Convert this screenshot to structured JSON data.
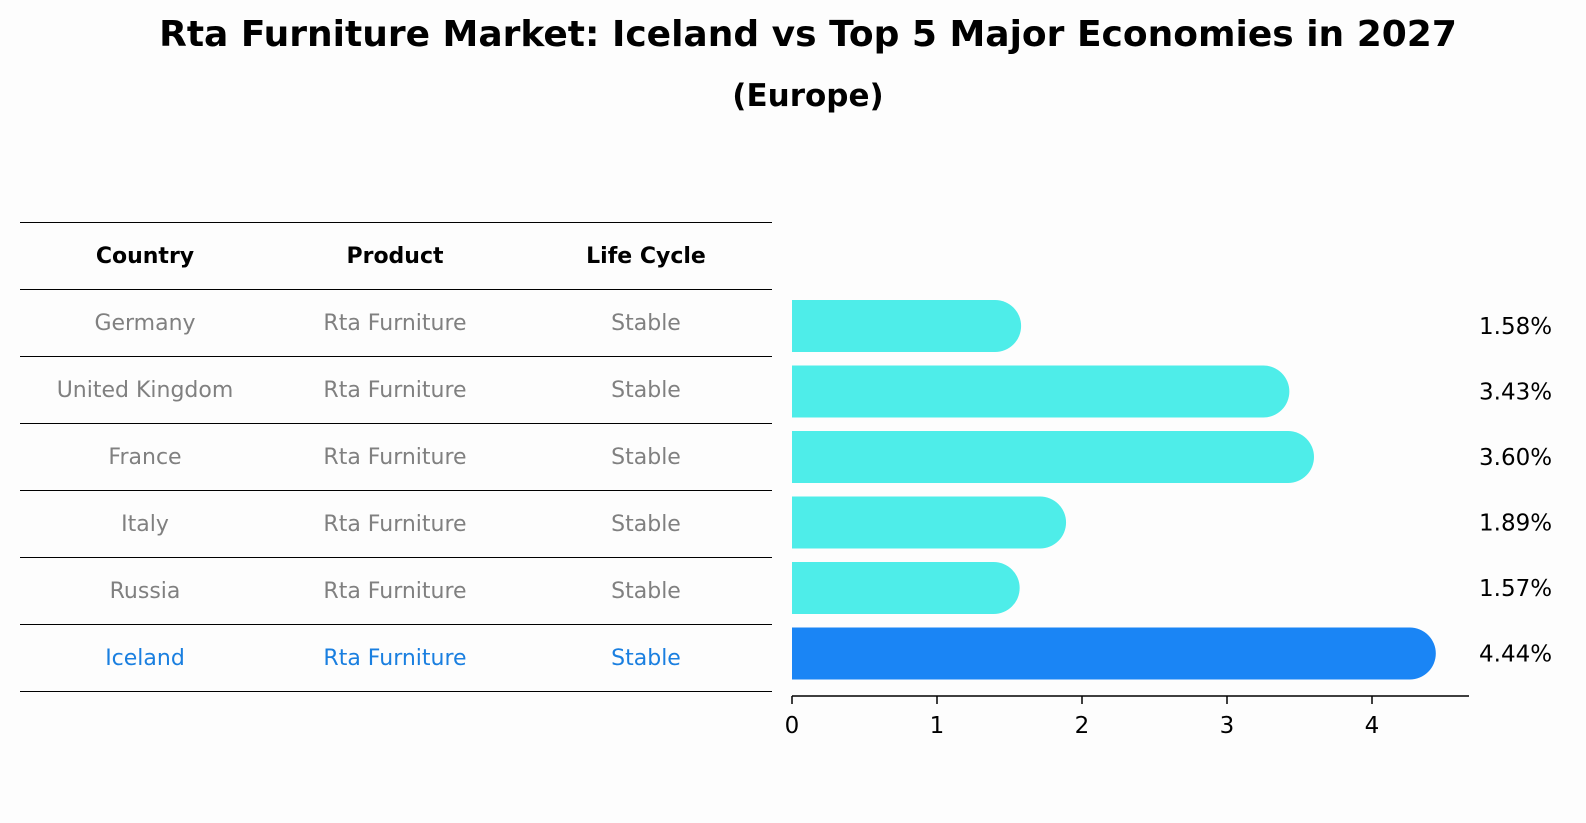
{
  "title": "Rta Furniture Market: Iceland vs Top 5 Major Economies in 2027",
  "subtitle": "(Europe)",
  "table": {
    "headers": [
      "Country",
      "Product",
      "Life Cycle"
    ],
    "rows": [
      [
        "Germany",
        "Rta Furniture",
        "Stable"
      ],
      [
        "United Kingdom",
        "Rta Furniture",
        "Stable"
      ],
      [
        "France",
        "Rta Furniture",
        "Stable"
      ],
      [
        "Italy",
        "Rta Furniture",
        "Stable"
      ],
      [
        "Russia",
        "Rta Furniture",
        "Stable"
      ],
      [
        "Iceland",
        "Rta Furniture",
        "Stable"
      ]
    ],
    "highlight_row": 5
  },
  "chart_data": {
    "type": "bar",
    "orientation": "horizontal",
    "categories": [
      "Germany",
      "United Kingdom",
      "France",
      "Italy",
      "Russia",
      "Iceland"
    ],
    "values": [
      1.58,
      3.43,
      3.6,
      1.89,
      1.57,
      4.44
    ],
    "value_labels": [
      "1.58%",
      "3.43%",
      "3.60%",
      "1.89%",
      "1.57%",
      "4.44%"
    ],
    "xticks": [
      "0",
      "1",
      "2",
      "3",
      "4"
    ],
    "xlim": [
      0,
      4.65
    ],
    "colors": {
      "default": "#4eede9",
      "highlight": "#1a85f5"
    },
    "highlight_index": 5,
    "grid": false
  }
}
